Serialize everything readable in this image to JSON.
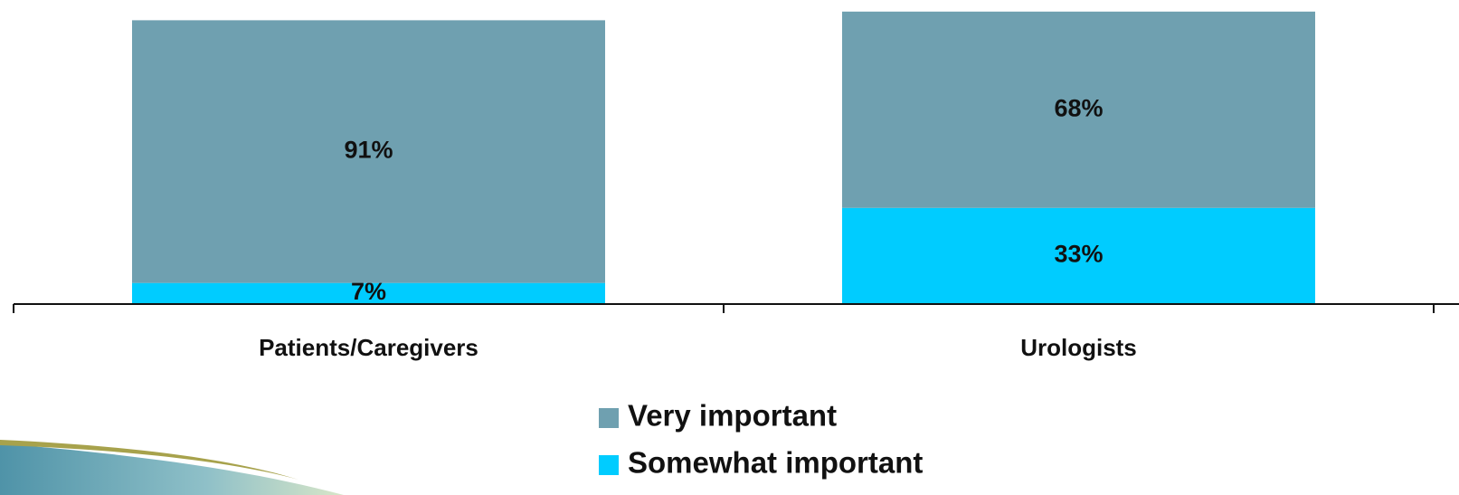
{
  "chart_data": {
    "type": "stacked_bar",
    "categories": [
      "Patients/Caregivers",
      "Urologists"
    ],
    "series": [
      {
        "name": "Very important",
        "color": "#6fa0b0",
        "values": [
          91,
          68
        ],
        "value_labels": [
          "91%",
          "68%"
        ]
      },
      {
        "name": "Somewhat important",
        "color": "#00ccff",
        "values": [
          7,
          33
        ],
        "value_labels": [
          "7%",
          "33%"
        ]
      }
    ]
  }
}
